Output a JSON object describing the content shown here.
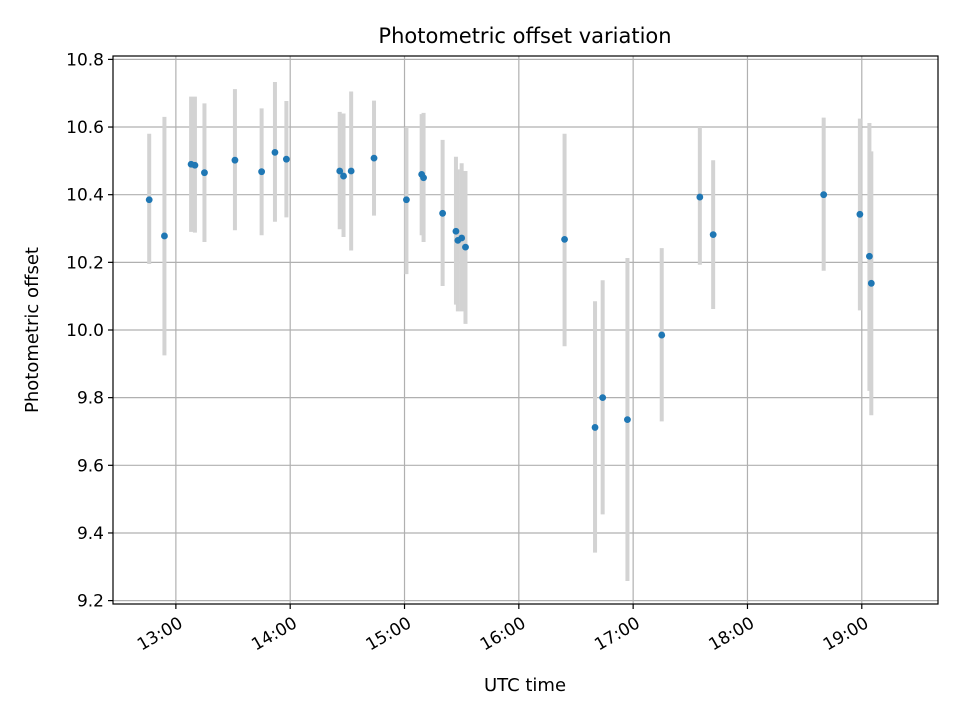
{
  "chart_data": {
    "type": "scatter",
    "title": "Photometric offset variation",
    "xlabel": "UTC time",
    "ylabel": "Photometric offset",
    "x_unit": "UTC time (HH:MM)",
    "xlim": [
      "12:27",
      "19:40"
    ],
    "ylim": [
      9.19,
      10.81
    ],
    "x_ticks": [
      "13:00",
      "14:00",
      "15:00",
      "16:00",
      "17:00",
      "18:00",
      "19:00"
    ],
    "y_ticks": [
      "9.2",
      "9.4",
      "9.6",
      "9.8",
      "10.0",
      "10.2",
      "10.4",
      "10.6",
      "10.8"
    ],
    "grid": true,
    "marker_color": "#1f77b4",
    "errorbar_color": "#d3d3d3",
    "series": [
      {
        "points": [
          {
            "x": "12:46",
            "y": 10.385,
            "low": 10.195,
            "high": 10.58
          },
          {
            "x": "12:54",
            "y": 10.278,
            "low": 9.925,
            "high": 10.63
          },
          {
            "x": "13:08",
            "y": 10.49,
            "low": 10.29,
            "high": 10.69
          },
          {
            "x": "13:10",
            "y": 10.487,
            "low": 10.288,
            "high": 10.69
          },
          {
            "x": "13:15",
            "y": 10.465,
            "low": 10.26,
            "high": 10.67
          },
          {
            "x": "13:31",
            "y": 10.502,
            "low": 10.295,
            "high": 10.712
          },
          {
            "x": "13:45",
            "y": 10.468,
            "low": 10.28,
            "high": 10.655
          },
          {
            "x": "13:52",
            "y": 10.525,
            "low": 10.32,
            "high": 10.733
          },
          {
            "x": "13:58",
            "y": 10.505,
            "low": 10.333,
            "high": 10.677
          },
          {
            "x": "14:26",
            "y": 10.47,
            "low": 10.298,
            "high": 10.645
          },
          {
            "x": "14:28",
            "y": 10.455,
            "low": 10.275,
            "high": 10.64
          },
          {
            "x": "14:32",
            "y": 10.47,
            "low": 10.235,
            "high": 10.705
          },
          {
            "x": "14:44",
            "y": 10.508,
            "low": 10.338,
            "high": 10.678
          },
          {
            "x": "15:01",
            "y": 10.385,
            "low": 10.165,
            "high": 10.6
          },
          {
            "x": "15:09",
            "y": 10.46,
            "low": 10.28,
            "high": 10.638
          },
          {
            "x": "15:10",
            "y": 10.45,
            "low": 10.26,
            "high": 10.642
          },
          {
            "x": "15:20",
            "y": 10.345,
            "low": 10.13,
            "high": 10.562
          },
          {
            "x": "15:27",
            "y": 10.292,
            "low": 10.075,
            "high": 10.512
          },
          {
            "x": "15:28",
            "y": 10.265,
            "low": 10.055,
            "high": 10.475
          },
          {
            "x": "15:30",
            "y": 10.272,
            "low": 10.055,
            "high": 10.493
          },
          {
            "x": "15:32",
            "y": 10.245,
            "low": 10.018,
            "high": 10.47
          },
          {
            "x": "16:24",
            "y": 10.268,
            "low": 9.952,
            "high": 10.58
          },
          {
            "x": "16:40",
            "y": 9.712,
            "low": 9.342,
            "high": 10.085
          },
          {
            "x": "16:44",
            "y": 9.8,
            "low": 9.455,
            "high": 10.147
          },
          {
            "x": "16:57",
            "y": 9.735,
            "low": 9.258,
            "high": 10.213
          },
          {
            "x": "17:15",
            "y": 9.985,
            "low": 9.73,
            "high": 10.242
          },
          {
            "x": "17:35",
            "y": 10.393,
            "low": 10.193,
            "high": 10.6
          },
          {
            "x": "17:42",
            "y": 10.282,
            "low": 10.062,
            "high": 10.502
          },
          {
            "x": "18:40",
            "y": 10.4,
            "low": 10.175,
            "high": 10.628
          },
          {
            "x": "18:59",
            "y": 10.342,
            "low": 10.058,
            "high": 10.625
          },
          {
            "x": "19:04",
            "y": 10.218,
            "low": 9.82,
            "high": 10.612
          },
          {
            "x": "19:05",
            "y": 10.138,
            "low": 9.748,
            "high": 10.528
          }
        ]
      }
    ]
  }
}
